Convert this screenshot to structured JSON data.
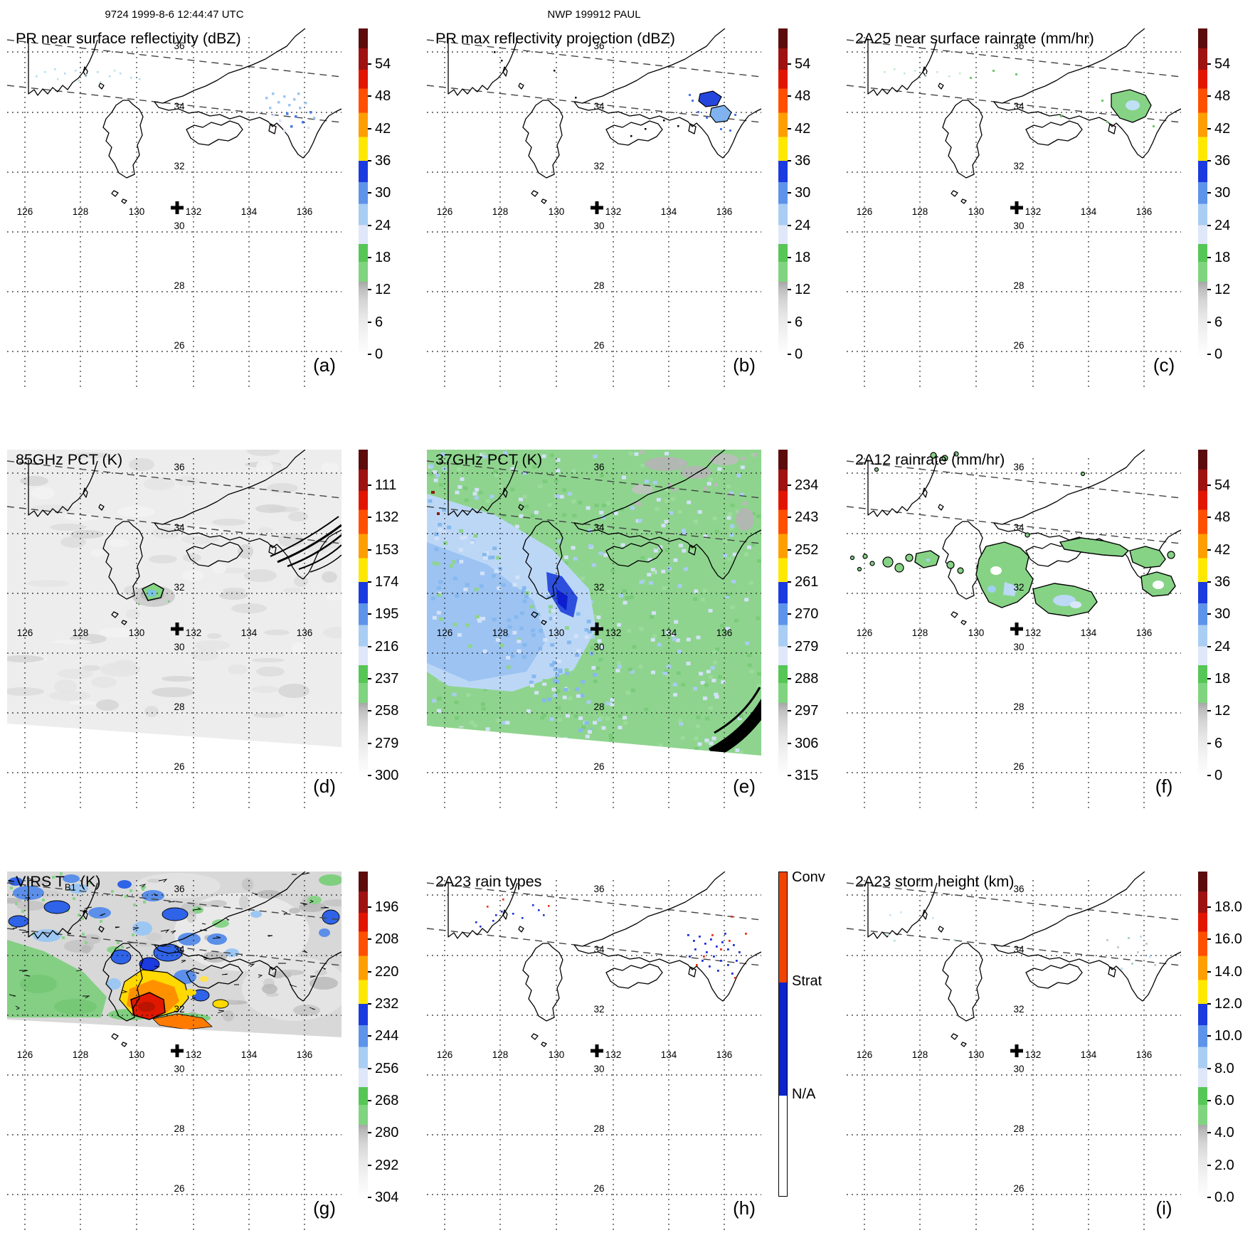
{
  "header": {
    "left_title": "9724 1999-8-6 12:44:47 UTC",
    "center_title": "NWP 199912 PAUL"
  },
  "axes": {
    "lon_labels": [
      "126",
      "128",
      "130",
      "132",
      "134",
      "136"
    ],
    "lat_labels": [
      "36",
      "34",
      "32",
      "30",
      "28",
      "26"
    ]
  },
  "map_domain": {
    "lon_range": [
      125.3,
      137.9
    ],
    "lat_range": [
      24.2,
      36.8
    ],
    "lon_gridlines": [
      126,
      128,
      130,
      132,
      134,
      136
    ],
    "lat_gridlines": [
      36,
      34,
      32,
      30,
      28,
      26
    ],
    "storm_marker": {
      "symbol": "+",
      "lon": 131.4,
      "lat": 30.8
    }
  },
  "colors": {
    "colorbar_bottom_to_top": [
      "#ffffff",
      "#a8a8a8",
      "#80d480",
      "#56c656",
      "#e0e7f9",
      "#a9cdf3",
      "#5e93ea",
      "#1b3ae0",
      "#ffe800",
      "#ff9e00",
      "#ff4f00",
      "#e21500",
      "#9e1212",
      "#5c0c0c"
    ],
    "rain_type": {
      "conv": "#f04300",
      "strat": "#0b24cc",
      "na": "#ffffff"
    }
  },
  "panels": [
    {
      "id": "a",
      "letter": "(a)",
      "title": "PR near surface reflectivity (dBZ)",
      "colorbar": {
        "type": "num",
        "ticks": [
          "54",
          "48",
          "42",
          "36",
          "30",
          "24",
          "18",
          "12",
          "6",
          "0"
        ]
      }
    },
    {
      "id": "b",
      "letter": "(b)",
      "title": "PR max reflectivity projection (dBZ)",
      "colorbar": {
        "type": "num",
        "ticks": [
          "54",
          "48",
          "42",
          "36",
          "30",
          "24",
          "18",
          "12",
          "6",
          "0"
        ]
      }
    },
    {
      "id": "c",
      "letter": "(c)",
      "title": "2A25 near surface rainrate (mm/hr)",
      "colorbar": {
        "type": "num",
        "ticks": [
          "54",
          "48",
          "42",
          "36",
          "30",
          "24",
          "18",
          "12",
          "6",
          "0"
        ]
      }
    },
    {
      "id": "d",
      "letter": "(d)",
      "title": "85GHz PCT (K)",
      "colorbar": {
        "type": "num",
        "ticks": [
          "111",
          "132",
          "153",
          "174",
          "195",
          "216",
          "237",
          "258",
          "279",
          "300"
        ]
      }
    },
    {
      "id": "e",
      "letter": "(e)",
      "title": "37GHz PCT (K)",
      "colorbar": {
        "type": "num",
        "ticks": [
          "234",
          "243",
          "252",
          "261",
          "270",
          "279",
          "288",
          "297",
          "306",
          "315"
        ]
      }
    },
    {
      "id": "f",
      "letter": "(f)",
      "title": "2A12 rainrate (mm/hr)",
      "colorbar": {
        "type": "num",
        "ticks": [
          "54",
          "48",
          "42",
          "36",
          "30",
          "24",
          "18",
          "12",
          "6",
          "0"
        ]
      }
    },
    {
      "id": "g",
      "letter": "(g)",
      "title": "VIRS T_B1 (K)",
      "title_parts": {
        "main": "VIRS T",
        "sub": "B1",
        "tail": " (K)"
      },
      "colorbar": {
        "type": "num",
        "ticks": [
          "196",
          "208",
          "220",
          "232",
          "244",
          "256",
          "268",
          "280",
          "292",
          "304"
        ]
      }
    },
    {
      "id": "h",
      "letter": "(h)",
      "title": "2A23 rain types",
      "colorbar": {
        "type": "cat",
        "categories": [
          "Conv",
          "Strat",
          "N/A"
        ]
      }
    },
    {
      "id": "i",
      "letter": "(i)",
      "title": "2A23 storm height (km)",
      "colorbar": {
        "type": "num",
        "ticks": [
          "18.0",
          "16.0",
          "14.0",
          "12.0",
          "10.0",
          "8.0",
          "6.0",
          "4.0",
          "2.0",
          "0.0"
        ]
      }
    }
  ],
  "chart_data": [
    {
      "panel": "a",
      "type": "heatmap",
      "title": "PR near surface reflectivity (dBZ)",
      "units": "dBZ",
      "colorbar_ticks": [
        54,
        48,
        42,
        36,
        30,
        24,
        18,
        12,
        6,
        0
      ],
      "colorbar_range": [
        0,
        60
      ],
      "legend_position": "right",
      "grid": "dotted lat/lon",
      "data_summary": "Scattered weak PR echoes (18-30 dBZ) near 135.5-136.5E / 33.8-34.6N inside the PR swath; faint specks near 126.5-130E / 36N; storm center marker at 131.4E 30.8N"
    },
    {
      "panel": "b",
      "type": "heatmap",
      "title": "PR max reflectivity projection (dBZ)",
      "units": "dBZ",
      "colorbar_ticks": [
        54,
        48,
        42,
        36,
        30,
        24,
        18,
        12,
        6,
        0
      ],
      "colorbar_range": [
        0,
        60
      ],
      "data_summary": "Stronger projected echoes (blue, black-outlined) clustered near 135.5-136.5E / 33.8-34.6N; isolated black specks along the swath"
    },
    {
      "panel": "c",
      "type": "heatmap",
      "title": "2A25 near surface rainrate (mm/hr)",
      "units": "mm/hr",
      "colorbar_ticks": [
        54,
        48,
        42,
        36,
        30,
        24,
        18,
        12,
        6,
        0
      ],
      "colorbar_range": [
        0,
        60
      ],
      "data_summary": "Light rain (green, ~6-18 mm/hr) black-contoured patch near 135.5-136.5E / 34N"
    },
    {
      "panel": "d",
      "type": "heatmap",
      "title": "85GHz PCT (K)",
      "units": "K",
      "colorbar_ticks": [
        111,
        132,
        153,
        174,
        195,
        216,
        237,
        258,
        279,
        300
      ],
      "colorbar_range": [
        300,
        90
      ],
      "data_summary": "TMI 85GHz PCT mostly 258-300 K (gray/white); small depressed PCT cell (~216-237 K, green/cyan with black contour) near 130.3E / 32.3N; scan-edge arcs lower right"
    },
    {
      "panel": "e",
      "type": "heatmap",
      "title": "37GHz PCT (K)",
      "units": "K",
      "colorbar_ticks": [
        234,
        243,
        252,
        261,
        270,
        279,
        288,
        297,
        306,
        315
      ],
      "colorbar_range": [
        315,
        225
      ],
      "data_summary": "Speckled 288 K (green) field over land/north, 270-279 K (light blue) band over ocean southwest, dark-blue minimum (~261-270 K) near 130.5E / 32.2N; gray >297 K patches northeast"
    },
    {
      "panel": "f",
      "type": "heatmap",
      "title": "2A12 rainrate (mm/hr)",
      "units": "mm/hr",
      "colorbar_ticks": [
        54,
        48,
        42,
        36,
        30,
        24,
        18,
        12,
        6,
        0
      ],
      "colorbar_range": [
        0,
        60
      ],
      "data_summary": "Black-contoured green (~6-12 mm/hr) rain areas in a band 31-33.5N between 127E and 137E, largest blobs near 131E and 133-134E with light-blue (~12-24 mm/hr) cores"
    },
    {
      "panel": "g",
      "type": "heatmap",
      "title": "VIRS T_B1 (K)",
      "units": "K",
      "colorbar_ticks": [
        196,
        208,
        220,
        232,
        244,
        256,
        268,
        280,
        292,
        304
      ],
      "colorbar_range": [
        304,
        190
      ],
      "data_summary": "VIRS IR brightness temperature image filling swath north of ~29.8N: gray 280-300 K background, green ~268 K, blue 244-256 K cloud clusters, and storm core 196-232 K (yellow/orange/red) near 130.5-131.5E / 31.5-32.3N"
    },
    {
      "panel": "h",
      "type": "categorical_map",
      "title": "2A23 rain types",
      "categories": [
        "Conv",
        "Strat",
        "N/A"
      ],
      "category_colors": [
        "#f04300",
        "#0b24cc",
        "#ffffff"
      ],
      "data_summary": "Mostly stratiform (blue) pixels with a few convective (red) pixels clustered near 135.5-136.5E / 34N and 128-129E / 35N"
    },
    {
      "panel": "i",
      "type": "heatmap",
      "title": "2A23 storm height (km)",
      "units": "km",
      "colorbar_ticks": [
        18.0,
        16.0,
        14.0,
        12.0,
        10.0,
        8.0,
        6.0,
        4.0,
        2.0,
        0.0
      ],
      "colorbar_range": [
        0,
        20
      ],
      "data_summary": "Sparse low storm heights (~2-6 km, pale gray/green/cyan specks) near 135.5-136.5E / 34N and 126.5-127E / 35.5N"
    }
  ]
}
